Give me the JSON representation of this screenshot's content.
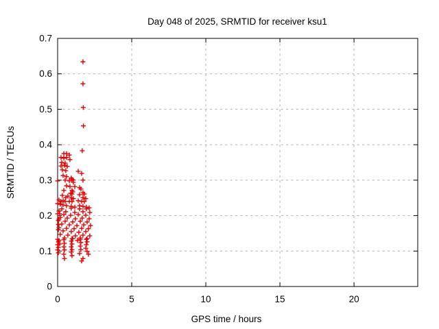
{
  "chart_data": {
    "type": "scatter",
    "title": "Day 048 of 2025, SRMTID for receiver ksu1",
    "xlabel": "GPS time / hours",
    "ylabel": "SRMTID / TECUs",
    "xlim": [
      0,
      24.3
    ],
    "ylim": [
      0,
      0.7
    ],
    "xticks": [
      [
        0,
        "0"
      ],
      [
        5,
        "5"
      ],
      [
        10,
        "10"
      ],
      [
        15,
        "15"
      ],
      [
        20,
        "20"
      ]
    ],
    "yticks": [
      [
        0,
        "0"
      ],
      [
        0.1,
        "0.1"
      ],
      [
        0.2,
        "0.2"
      ],
      [
        0.3,
        "0.3"
      ],
      [
        0.4,
        "0.4"
      ],
      [
        0.5,
        "0.5"
      ],
      [
        0.6,
        "0.6"
      ],
      [
        0.7,
        "0.7"
      ]
    ],
    "grid": true,
    "legend": "none",
    "marker": {
      "shape": "plus",
      "size": 7,
      "color": "#e10000"
    },
    "colors": {
      "frame": "#000000",
      "grid": "#b0b0b0",
      "background": "#ffffff",
      "text": "#000000"
    },
    "series": [
      {
        "name": "SRMTID",
        "points": [
          [
            1.71,
            0.634
          ],
          [
            1.71,
            0.572
          ],
          [
            1.73,
            0.505
          ],
          [
            1.74,
            0.453
          ],
          [
            1.66,
            0.383
          ],
          [
            0.42,
            0.375
          ],
          [
            0.6,
            0.375
          ],
          [
            0.79,
            0.371
          ],
          [
            0.23,
            0.364
          ],
          [
            0.42,
            0.362
          ],
          [
            0.6,
            0.364
          ],
          [
            0.83,
            0.358
          ],
          [
            0.28,
            0.35
          ],
          [
            0.51,
            0.348
          ],
          [
            0.23,
            0.34
          ],
          [
            0.46,
            0.342
          ],
          [
            0.65,
            0.339
          ],
          [
            0.32,
            0.329
          ],
          [
            0.55,
            0.327
          ],
          [
            1.39,
            0.325
          ],
          [
            1.62,
            0.319
          ],
          [
            0.37,
            0.313
          ],
          [
            0.6,
            0.31
          ],
          [
            0.92,
            0.306
          ],
          [
            0.97,
            0.302
          ],
          [
            1.06,
            0.3
          ],
          [
            0.79,
            0.298
          ],
          [
            1.71,
            0.3
          ],
          [
            0.0,
            0.298
          ],
          [
            0.51,
            0.3
          ],
          [
            1.06,
            0.294
          ],
          [
            0.6,
            0.284
          ],
          [
            0.83,
            0.282
          ],
          [
            1.16,
            0.282
          ],
          [
            1.48,
            0.279
          ],
          [
            1.57,
            0.275
          ],
          [
            0.42,
            0.271
          ],
          [
            0.97,
            0.271
          ],
          [
            1.02,
            0.267
          ],
          [
            0.88,
            0.263
          ],
          [
            0.97,
            0.261
          ],
          [
            1.71,
            0.265
          ],
          [
            1.8,
            0.261
          ],
          [
            1.48,
            0.259
          ],
          [
            0.32,
            0.257
          ],
          [
            0.69,
            0.255
          ],
          [
            0.55,
            0.251
          ],
          [
            0.92,
            0.25
          ],
          [
            1.06,
            0.248
          ],
          [
            1.71,
            0.251
          ],
          [
            1.9,
            0.248
          ],
          [
            0.09,
            0.244
          ],
          [
            0.23,
            0.24
          ],
          [
            0.37,
            0.242
          ],
          [
            0.51,
            0.24
          ],
          [
            0.79,
            0.24
          ],
          [
            0.97,
            0.24
          ],
          [
            1.39,
            0.242
          ],
          [
            1.62,
            0.24
          ],
          [
            1.8,
            0.24
          ],
          [
            0.0,
            0.234
          ],
          [
            0.18,
            0.232
          ],
          [
            0.37,
            0.23
          ],
          [
            0.6,
            0.228
          ],
          [
            0.92,
            0.226
          ],
          [
            1.16,
            0.224
          ],
          [
            1.48,
            0.228
          ],
          [
            1.71,
            0.226
          ],
          [
            1.94,
            0.224
          ],
          [
            2.13,
            0.222
          ],
          [
            0.28,
            0.219
          ],
          [
            0.92,
            0.221
          ],
          [
            1.48,
            0.219
          ],
          [
            1.94,
            0.219
          ],
          [
            0.09,
            0.213
          ],
          [
            0.55,
            0.211
          ],
          [
            1.16,
            0.209
          ],
          [
            1.71,
            0.211
          ],
          [
            2.17,
            0.209
          ],
          [
            0.0,
            0.205
          ],
          [
            0.42,
            0.203
          ],
          [
            0.88,
            0.201
          ],
          [
            1.39,
            0.203
          ],
          [
            1.9,
            0.201
          ],
          [
            0.14,
            0.205
          ],
          [
            0.18,
            0.195
          ],
          [
            0.65,
            0.193
          ],
          [
            1.2,
            0.191
          ],
          [
            1.66,
            0.193
          ],
          [
            2.13,
            0.191
          ],
          [
            0.09,
            0.19
          ],
          [
            0.05,
            0.186
          ],
          [
            0.51,
            0.184
          ],
          [
            1.02,
            0.182
          ],
          [
            1.53,
            0.184
          ],
          [
            1.99,
            0.182
          ],
          [
            0.28,
            0.176
          ],
          [
            0.79,
            0.174
          ],
          [
            1.3,
            0.172
          ],
          [
            1.76,
            0.174
          ],
          [
            2.22,
            0.172
          ],
          [
            0.05,
            0.175
          ],
          [
            0.09,
            0.166
          ],
          [
            0.6,
            0.164
          ],
          [
            1.11,
            0.163
          ],
          [
            1.62,
            0.164
          ],
          [
            2.08,
            0.163
          ],
          [
            0.05,
            0.16
          ],
          [
            0.37,
            0.157
          ],
          [
            0.92,
            0.155
          ],
          [
            1.43,
            0.153
          ],
          [
            1.9,
            0.155
          ],
          [
            0.18,
            0.147
          ],
          [
            0.69,
            0.145
          ],
          [
            1.2,
            0.143
          ],
          [
            1.71,
            0.145
          ],
          [
            2.17,
            0.143
          ],
          [
            0.46,
            0.137
          ],
          [
            1.02,
            0.135
          ],
          [
            1.53,
            0.137
          ],
          [
            1.99,
            0.135
          ],
          [
            0.0,
            0.133
          ],
          [
            0.05,
            0.126
          ],
          [
            0.0,
            0.118
          ],
          [
            0.05,
            0.11
          ],
          [
            0.0,
            0.103
          ],
          [
            0.05,
            0.095
          ],
          [
            0.09,
            0.13
          ],
          [
            0.14,
            0.12
          ],
          [
            0.42,
            0.132
          ],
          [
            0.46,
            0.122
          ],
          [
            0.42,
            0.112
          ],
          [
            0.46,
            0.103
          ],
          [
            0.42,
            0.091
          ],
          [
            0.46,
            0.079
          ],
          [
            0.97,
            0.135
          ],
          [
            0.92,
            0.128
          ],
          [
            0.97,
            0.12
          ],
          [
            0.92,
            0.112
          ],
          [
            0.97,
            0.104
          ],
          [
            0.92,
            0.097
          ],
          [
            0.97,
            0.087
          ],
          [
            1.34,
            0.13
          ],
          [
            1.53,
            0.133
          ],
          [
            1.57,
            0.124
          ],
          [
            1.53,
            0.114
          ],
          [
            1.57,
            0.104
          ],
          [
            1.48,
            0.093
          ],
          [
            2.08,
            0.091
          ],
          [
            1.71,
            0.079
          ],
          [
            1.62,
            0.072
          ],
          [
            1.94,
            0.133
          ],
          [
            1.99,
            0.126
          ],
          [
            1.94,
            0.118
          ],
          [
            1.9,
            0.108
          ],
          [
            1.99,
            0.099
          ]
        ]
      }
    ]
  }
}
